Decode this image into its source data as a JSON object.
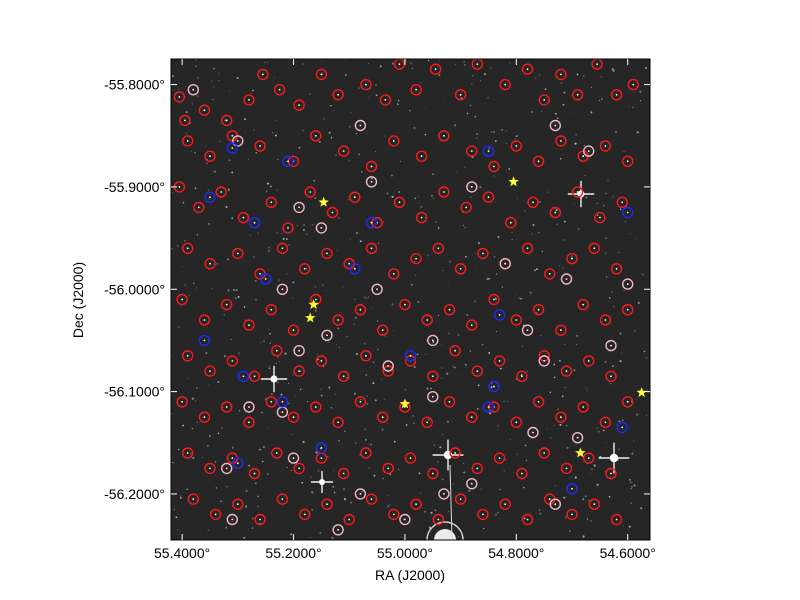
{
  "chart_data": {
    "type": "scatter",
    "title": "",
    "xlabel": "RA (J2000)",
    "ylabel": "Dec (J2000)",
    "xlim": [
      55.42,
      54.56
    ],
    "ylim": [
      -56.245,
      -55.775
    ],
    "x_axis_inverted": true,
    "grid": false,
    "background": "#262626",
    "x_ticks": [
      {
        "value": 55.4,
        "label": "55.4000°"
      },
      {
        "value": 55.2,
        "label": "55.2000°"
      },
      {
        "value": 55.0,
        "label": "55.0000°"
      },
      {
        "value": 54.8,
        "label": "54.8000°"
      },
      {
        "value": 54.6,
        "label": "54.6000°"
      }
    ],
    "y_ticks": [
      {
        "value": -55.8,
        "label": "-55.8000°"
      },
      {
        "value": -55.9,
        "label": "-55.9000°"
      },
      {
        "value": -56.0,
        "label": "-56.0000°"
      },
      {
        "value": -56.1,
        "label": "-56.1000°"
      },
      {
        "value": -56.2,
        "label": "-56.2000°"
      }
    ],
    "series": [
      {
        "marker": "circle-red",
        "color": "#ff1a1a",
        "points": [
          [
            55.405,
            -55.812
          ],
          [
            55.395,
            -55.835
          ],
          [
            55.36,
            -55.825
          ],
          [
            55.32,
            -55.835
          ],
          [
            55.28,
            -55.815
          ],
          [
            55.255,
            -55.79
          ],
          [
            55.225,
            -55.805
          ],
          [
            55.19,
            -55.82
          ],
          [
            55.15,
            -55.79
          ],
          [
            55.12,
            -55.81
          ],
          [
            55.07,
            -55.8
          ],
          [
            55.035,
            -55.815
          ],
          [
            55.01,
            -55.78
          ],
          [
            54.98,
            -55.805
          ],
          [
            54.945,
            -55.785
          ],
          [
            54.9,
            -55.81
          ],
          [
            54.87,
            -55.78
          ],
          [
            54.82,
            -55.8
          ],
          [
            54.78,
            -55.785
          ],
          [
            54.75,
            -55.815
          ],
          [
            54.72,
            -55.79
          ],
          [
            54.69,
            -55.81
          ],
          [
            54.655,
            -55.78
          ],
          [
            54.62,
            -55.81
          ],
          [
            54.59,
            -55.8
          ],
          [
            55.39,
            -55.855
          ],
          [
            55.35,
            -55.87
          ],
          [
            55.31,
            -55.85
          ],
          [
            55.26,
            -55.86
          ],
          [
            55.2,
            -55.875
          ],
          [
            55.16,
            -55.85
          ],
          [
            55.11,
            -55.865
          ],
          [
            55.06,
            -55.88
          ],
          [
            55.02,
            -55.855
          ],
          [
            54.97,
            -55.87
          ],
          [
            54.93,
            -55.85
          ],
          [
            54.88,
            -55.865
          ],
          [
            54.84,
            -55.88
          ],
          [
            54.8,
            -55.86
          ],
          [
            54.76,
            -55.875
          ],
          [
            54.72,
            -55.855
          ],
          [
            54.68,
            -55.87
          ],
          [
            54.64,
            -55.86
          ],
          [
            54.6,
            -55.875
          ],
          [
            55.405,
            -55.9
          ],
          [
            55.37,
            -55.92
          ],
          [
            55.33,
            -55.905
          ],
          [
            55.29,
            -55.93
          ],
          [
            55.24,
            -55.915
          ],
          [
            55.21,
            -55.94
          ],
          [
            55.17,
            -55.905
          ],
          [
            55.13,
            -55.925
          ],
          [
            55.09,
            -55.91
          ],
          [
            55.05,
            -55.935
          ],
          [
            55.01,
            -55.915
          ],
          [
            54.97,
            -55.93
          ],
          [
            54.93,
            -55.905
          ],
          [
            54.89,
            -55.92
          ],
          [
            54.85,
            -55.91
          ],
          [
            54.81,
            -55.935
          ],
          [
            54.77,
            -55.915
          ],
          [
            54.73,
            -55.925
          ],
          [
            54.69,
            -55.905
          ],
          [
            54.65,
            -55.93
          ],
          [
            54.61,
            -55.915
          ],
          [
            55.39,
            -55.96
          ],
          [
            55.35,
            -55.975
          ],
          [
            55.3,
            -55.965
          ],
          [
            55.26,
            -55.985
          ],
          [
            55.22,
            -55.96
          ],
          [
            55.18,
            -55.98
          ],
          [
            55.14,
            -55.965
          ],
          [
            55.1,
            -55.975
          ],
          [
            55.06,
            -55.96
          ],
          [
            55.02,
            -55.985
          ],
          [
            54.98,
            -55.97
          ],
          [
            54.94,
            -55.96
          ],
          [
            54.9,
            -55.98
          ],
          [
            54.86,
            -55.965
          ],
          [
            54.82,
            -55.975
          ],
          [
            54.78,
            -55.96
          ],
          [
            54.74,
            -55.985
          ],
          [
            54.7,
            -55.97
          ],
          [
            54.66,
            -55.96
          ],
          [
            54.62,
            -55.98
          ],
          [
            55.4,
            -56.01
          ],
          [
            55.36,
            -56.03
          ],
          [
            55.32,
            -56.015
          ],
          [
            55.28,
            -56.035
          ],
          [
            55.24,
            -56.02
          ],
          [
            55.2,
            -56.04
          ],
          [
            55.16,
            -56.01
          ],
          [
            55.12,
            -56.03
          ],
          [
            55.08,
            -56.02
          ],
          [
            55.04,
            -56.04
          ],
          [
            55.0,
            -56.015
          ],
          [
            54.96,
            -56.03
          ],
          [
            54.92,
            -56.02
          ],
          [
            54.88,
            -56.035
          ],
          [
            54.84,
            -56.01
          ],
          [
            54.8,
            -56.03
          ],
          [
            54.76,
            -56.02
          ],
          [
            54.72,
            -56.04
          ],
          [
            54.68,
            -56.015
          ],
          [
            54.64,
            -56.03
          ],
          [
            54.6,
            -56.02
          ],
          [
            55.39,
            -56.065
          ],
          [
            55.35,
            -56.08
          ],
          [
            55.31,
            -56.07
          ],
          [
            55.27,
            -56.085
          ],
          [
            55.23,
            -56.06
          ],
          [
            55.19,
            -56.08
          ],
          [
            55.15,
            -56.07
          ],
          [
            55.11,
            -56.085
          ],
          [
            55.07,
            -56.065
          ],
          [
            55.03,
            -56.08
          ],
          [
            54.99,
            -56.07
          ],
          [
            54.95,
            -56.085
          ],
          [
            54.91,
            -56.06
          ],
          [
            54.87,
            -56.08
          ],
          [
            54.83,
            -56.07
          ],
          [
            54.79,
            -56.085
          ],
          [
            54.75,
            -56.065
          ],
          [
            54.71,
            -56.08
          ],
          [
            54.67,
            -56.07
          ],
          [
            54.63,
            -56.085
          ],
          [
            55.4,
            -56.11
          ],
          [
            55.36,
            -56.125
          ],
          [
            55.32,
            -56.115
          ],
          [
            55.28,
            -56.13
          ],
          [
            55.24,
            -56.11
          ],
          [
            55.2,
            -56.125
          ],
          [
            55.16,
            -56.115
          ],
          [
            55.12,
            -56.13
          ],
          [
            55.08,
            -56.11
          ],
          [
            55.04,
            -56.125
          ],
          [
            55.0,
            -56.115
          ],
          [
            54.96,
            -56.13
          ],
          [
            54.92,
            -56.11
          ],
          [
            54.88,
            -56.125
          ],
          [
            54.84,
            -56.115
          ],
          [
            54.8,
            -56.13
          ],
          [
            54.76,
            -56.11
          ],
          [
            54.72,
            -56.125
          ],
          [
            54.68,
            -56.115
          ],
          [
            54.64,
            -56.13
          ],
          [
            54.6,
            -56.11
          ],
          [
            55.39,
            -56.16
          ],
          [
            55.35,
            -56.175
          ],
          [
            55.31,
            -56.165
          ],
          [
            55.27,
            -56.18
          ],
          [
            55.23,
            -56.16
          ],
          [
            55.19,
            -56.175
          ],
          [
            55.15,
            -56.165
          ],
          [
            55.11,
            -56.18
          ],
          [
            55.07,
            -56.16
          ],
          [
            55.03,
            -56.175
          ],
          [
            54.99,
            -56.165
          ],
          [
            54.95,
            -56.18
          ],
          [
            54.91,
            -56.16
          ],
          [
            54.87,
            -56.175
          ],
          [
            54.83,
            -56.165
          ],
          [
            54.79,
            -56.18
          ],
          [
            54.75,
            -56.16
          ],
          [
            54.71,
            -56.175
          ],
          [
            54.67,
            -56.165
          ],
          [
            54.63,
            -56.18
          ],
          [
            55.38,
            -56.205
          ],
          [
            55.34,
            -56.22
          ],
          [
            55.3,
            -56.21
          ],
          [
            55.26,
            -56.225
          ],
          [
            55.22,
            -56.205
          ],
          [
            55.18,
            -56.22
          ],
          [
            55.14,
            -56.21
          ],
          [
            55.1,
            -56.225
          ],
          [
            55.06,
            -56.205
          ],
          [
            55.02,
            -56.22
          ],
          [
            54.98,
            -56.21
          ],
          [
            54.94,
            -56.225
          ],
          [
            54.9,
            -56.205
          ],
          [
            54.86,
            -56.22
          ],
          [
            54.82,
            -56.21
          ],
          [
            54.78,
            -56.225
          ],
          [
            54.74,
            -56.205
          ],
          [
            54.7,
            -56.22
          ],
          [
            54.66,
            -56.21
          ],
          [
            54.62,
            -56.225
          ]
        ]
      },
      {
        "marker": "circle-pink",
        "color": "#f2b8c4",
        "points": [
          [
            55.38,
            -55.805
          ],
          [
            55.3,
            -55.855
          ],
          [
            55.08,
            -55.84
          ],
          [
            55.06,
            -55.895
          ],
          [
            54.88,
            -55.9
          ],
          [
            54.73,
            -55.84
          ],
          [
            54.67,
            -55.865
          ],
          [
            55.19,
            -55.92
          ],
          [
            55.15,
            -55.94
          ],
          [
            55.05,
            -56.0
          ],
          [
            54.82,
            -55.975
          ],
          [
            54.71,
            -55.99
          ],
          [
            54.6,
            -55.995
          ],
          [
            55.22,
            -56.0
          ],
          [
            55.14,
            -56.045
          ],
          [
            54.95,
            -56.05
          ],
          [
            54.78,
            -56.04
          ],
          [
            55.19,
            -56.06
          ],
          [
            55.03,
            -56.075
          ],
          [
            54.75,
            -56.07
          ],
          [
            55.28,
            -56.115
          ],
          [
            55.22,
            -56.12
          ],
          [
            54.95,
            -56.105
          ],
          [
            54.77,
            -56.14
          ],
          [
            55.32,
            -56.175
          ],
          [
            55.2,
            -56.165
          ],
          [
            55.08,
            -56.2
          ],
          [
            54.88,
            -56.19
          ],
          [
            54.73,
            -56.21
          ],
          [
            55.31,
            -56.225
          ],
          [
            55.12,
            -56.235
          ],
          [
            55.0,
            -56.225
          ],
          [
            54.93,
            -56.2
          ],
          [
            54.69,
            -56.145
          ],
          [
            54.63,
            -56.055
          ]
        ]
      },
      {
        "marker": "circle-blue",
        "color": "#1b2cff",
        "points": [
          [
            55.31,
            -55.862
          ],
          [
            55.21,
            -55.875
          ],
          [
            54.85,
            -55.865
          ],
          [
            55.35,
            -55.91
          ],
          [
            55.27,
            -55.935
          ],
          [
            55.06,
            -55.935
          ],
          [
            54.6,
            -55.925
          ],
          [
            55.25,
            -55.99
          ],
          [
            55.09,
            -55.98
          ],
          [
            54.83,
            -56.025
          ],
          [
            55.36,
            -56.05
          ],
          [
            55.29,
            -56.085
          ],
          [
            54.99,
            -56.065
          ],
          [
            54.84,
            -56.095
          ],
          [
            55.15,
            -56.155
          ],
          [
            55.3,
            -56.17
          ],
          [
            54.85,
            -56.115
          ],
          [
            54.7,
            -56.195
          ],
          [
            54.61,
            -56.135
          ],
          [
            55.22,
            -56.11
          ]
        ]
      },
      {
        "marker": "star",
        "color": "#ffff33",
        "points": [
          [
            55.146,
            -55.915
          ],
          [
            54.805,
            -55.895
          ],
          [
            55.164,
            -56.015
          ],
          [
            55.17,
            -56.028
          ],
          [
            55.0,
            -56.112
          ],
          [
            54.685,
            -56.16
          ],
          [
            54.575,
            -56.101
          ]
        ]
      }
    ]
  }
}
